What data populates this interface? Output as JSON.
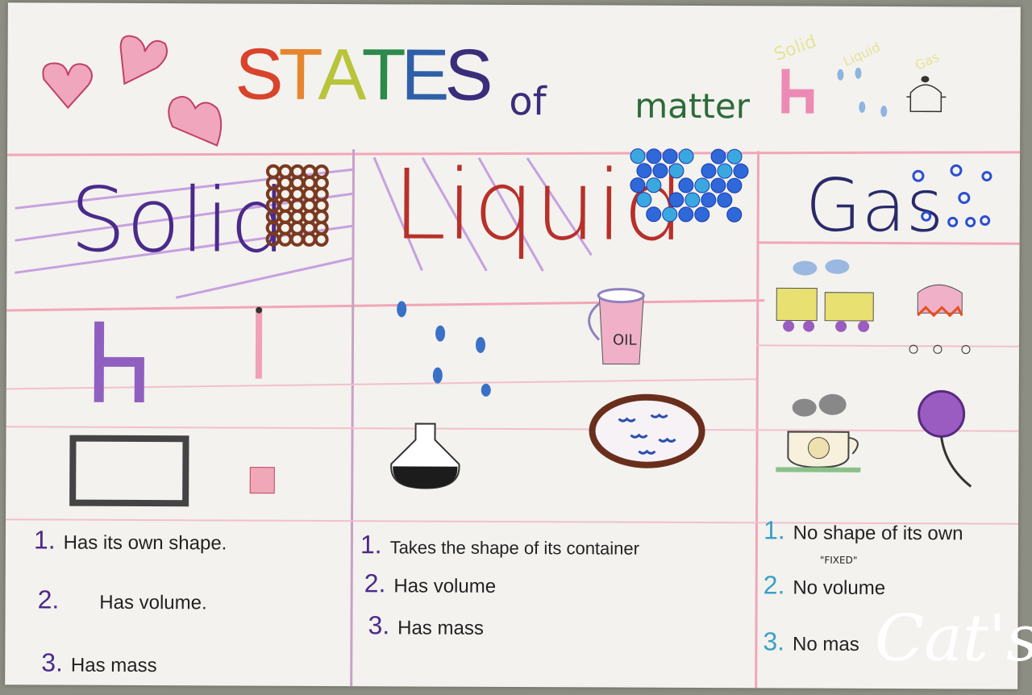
{
  "title": {
    "letters": [
      "S",
      "T",
      "A",
      "T",
      "E",
      "S"
    ],
    "of": "of",
    "matter": "matter",
    "letter_colors": [
      "#d9432c",
      "#e5862f",
      "#b8c43a",
      "#2d8a4a",
      "#2f5fa8",
      "#3a2d7a"
    ]
  },
  "columns": [
    {
      "heading": "Solid",
      "color": "#4a2a8a",
      "facts": [
        {
          "num": "1.",
          "text": "Has its own shape."
        },
        {
          "num": "2.",
          "text": "Has volume."
        },
        {
          "num": "3.",
          "text": "Has mass"
        }
      ],
      "num_color": "#4a2a8a"
    },
    {
      "heading": "Liquid",
      "color": "#b8302a",
      "facts": [
        {
          "num": "1.",
          "text": "Takes the shape of its container"
        },
        {
          "num": "2.",
          "text": "Has volume"
        },
        {
          "num": "3.",
          "text": "Has mass"
        }
      ],
      "num_color": "#4a2a8a"
    },
    {
      "heading": "Gas",
      "color": "#2a2a6a",
      "facts": [
        {
          "num": "1.",
          "text": "No shape of its own"
        },
        {
          "num": "2.",
          "text": "No volume"
        },
        {
          "num": "3.",
          "text": "No mas"
        }
      ],
      "note": "\"FIXED\"",
      "num_color": "#3aa0c8"
    }
  ],
  "drawings": {
    "oil_label": "OIL",
    "faint_labels": [
      "Solid",
      "Liquid",
      "Gas"
    ]
  },
  "watermark": "Cat's"
}
